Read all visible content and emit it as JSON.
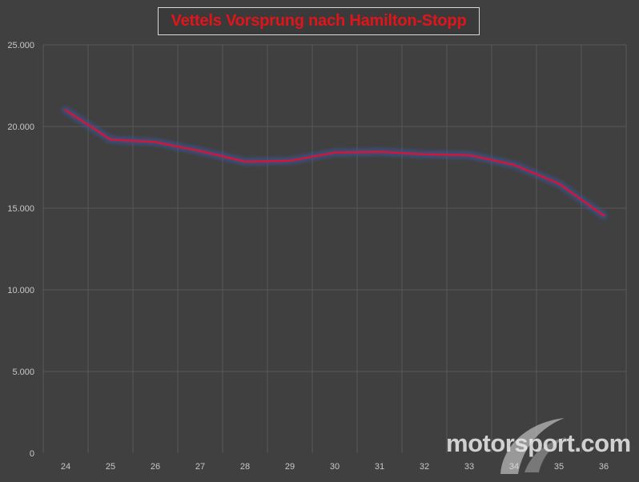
{
  "chart_data": {
    "type": "line",
    "title": "Vettels Vorsprung nach Hamilton-Stopp",
    "xlabel": "",
    "ylabel": "",
    "x": [
      24,
      25,
      26,
      27,
      28,
      29,
      30,
      31,
      32,
      33,
      34,
      35,
      36
    ],
    "x_tick_labels": [
      "24",
      "25",
      "26",
      "27",
      "28",
      "29",
      "30",
      "31",
      "32",
      "33",
      "34",
      "35",
      "36"
    ],
    "y_ticks": [
      0,
      5000,
      10000,
      15000,
      20000,
      25000
    ],
    "y_tick_labels": [
      "0",
      "5.000",
      "10.000",
      "15.000",
      "20.000",
      "25.000"
    ],
    "ylim": [
      0,
      25000
    ],
    "grid": true,
    "series": [
      {
        "values": [
          21000,
          19200,
          19050,
          18500,
          17850,
          17900,
          18400,
          18450,
          18300,
          18250,
          17650,
          16500,
          14550
        ],
        "color": "#d2163a",
        "glow_color": "#3c5aa8"
      }
    ],
    "colors": {
      "background": "#404040",
      "grid": "#575757",
      "title_text": "#e0151c"
    }
  },
  "watermark": {
    "text": "motorsport.com",
    "icon": "motorsport-logo-swoosh-icon"
  }
}
